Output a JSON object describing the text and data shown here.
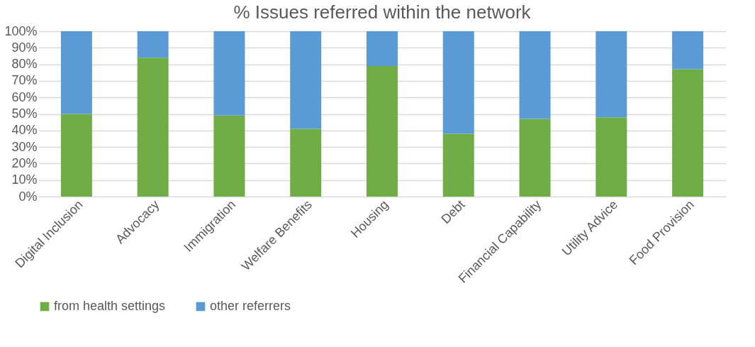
{
  "chart_data": {
    "type": "bar",
    "title": "% Issues referred within the network",
    "stacked": true,
    "categories": [
      "Digital Inclusion",
      "Advocacy",
      "Immigration",
      "Welfare Benefits",
      "Housing",
      "Debt",
      "Financial Capability",
      "Utility Advice",
      "Food Provision"
    ],
    "series": [
      {
        "name": "from health settings",
        "color": "#70ad47",
        "values": [
          50,
          84,
          49,
          41,
          79,
          38,
          47,
          48,
          77
        ]
      },
      {
        "name": "other referrers",
        "color": "#5b9bd5",
        "values": [
          50,
          16,
          51,
          59,
          21,
          62,
          53,
          52,
          23
        ]
      }
    ],
    "ylim": [
      0,
      100
    ],
    "yticks": [
      {
        "value": 0,
        "label": "0%"
      },
      {
        "value": 10,
        "label": "10%"
      },
      {
        "value": 20,
        "label": "20%"
      },
      {
        "value": 30,
        "label": "30%"
      },
      {
        "value": 40,
        "label": "40%"
      },
      {
        "value": 50,
        "label": "50%"
      },
      {
        "value": 60,
        "label": "60%"
      },
      {
        "value": 70,
        "label": "70%"
      },
      {
        "value": 80,
        "label": "80%"
      },
      {
        "value": 90,
        "label": "90%"
      },
      {
        "value": 100,
        "label": "100%"
      }
    ],
    "grid": "y",
    "legend": "bottom"
  }
}
